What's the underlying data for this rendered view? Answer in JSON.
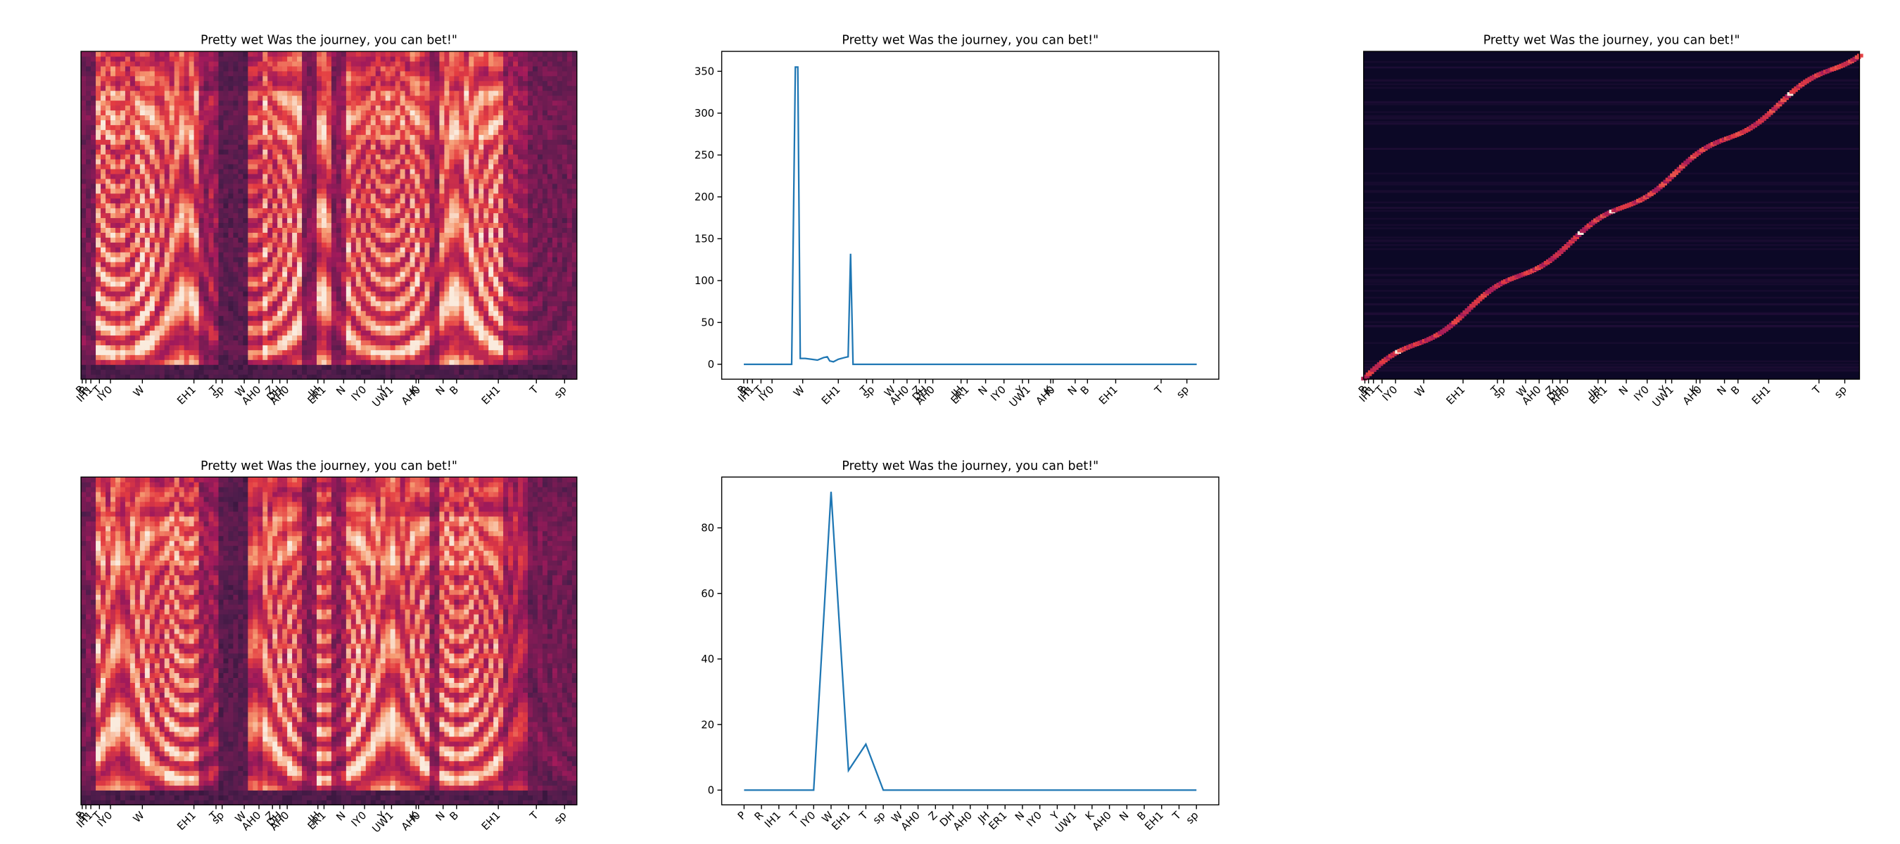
{
  "chart_data": [
    {
      "type": "spectrogram",
      "title": "Pretty wet Was the journey, you can bet!\"",
      "xlim": [
        0,
        404
      ],
      "xticks": [
        {
          "value": 1,
          "label": "P"
        },
        {
          "value": 4,
          "label": "R"
        },
        {
          "value": 8,
          "label": "IH1"
        },
        {
          "value": 15,
          "label": "T"
        },
        {
          "value": 24,
          "label": "IY0"
        },
        {
          "value": 50,
          "label": "W"
        },
        {
          "value": 92,
          "label": "EH1"
        },
        {
          "value": 110,
          "label": "T"
        },
        {
          "value": 115,
          "label": "sp"
        },
        {
          "value": 133,
          "label": "W"
        },
        {
          "value": 145,
          "label": "AH0"
        },
        {
          "value": 156,
          "label": "Z"
        },
        {
          "value": 162,
          "label": "DH"
        },
        {
          "value": 168,
          "label": "AH0"
        },
        {
          "value": 193,
          "label": "JH"
        },
        {
          "value": 198,
          "label": "ER1"
        },
        {
          "value": 214,
          "label": "N"
        },
        {
          "value": 231,
          "label": "IY0"
        },
        {
          "value": 247,
          "label": "Y"
        },
        {
          "value": 253,
          "label": "UW1"
        },
        {
          "value": 273,
          "label": "K"
        },
        {
          "value": 275,
          "label": "AH0"
        },
        {
          "value": 295,
          "label": "N"
        },
        {
          "value": 306,
          "label": "B"
        },
        {
          "value": 340,
          "label": "EH1"
        },
        {
          "value": 371,
          "label": "T"
        },
        {
          "value": 394,
          "label": "sp"
        }
      ]
    },
    {
      "type": "line",
      "title": "Pretty wet Was the journey, you can bet!\"",
      "color": "#1f77b4",
      "x": [
        0,
        39,
        42,
        44,
        46,
        50,
        55,
        60,
        65,
        68,
        70,
        73,
        77,
        82,
        85,
        87,
        89,
        369
      ],
      "values": [
        0,
        0,
        355,
        355,
        7,
        7,
        6,
        5,
        8,
        9,
        4,
        3,
        6,
        8,
        9,
        132,
        0,
        0
      ],
      "xlim": [
        -18,
        387
      ],
      "ylim": [
        -17.8,
        373.8
      ],
      "yticks": [
        0,
        50,
        100,
        150,
        200,
        250,
        300,
        350
      ],
      "xticks": [
        {
          "value": 0,
          "label": "P"
        },
        {
          "value": 3,
          "label": "R"
        },
        {
          "value": 7,
          "label": "IH1"
        },
        {
          "value": 14,
          "label": "T"
        },
        {
          "value": 23,
          "label": "IY0"
        },
        {
          "value": 48,
          "label": "W"
        },
        {
          "value": 77,
          "label": "EH1"
        },
        {
          "value": 100,
          "label": "T"
        },
        {
          "value": 105,
          "label": "sp"
        },
        {
          "value": 122,
          "label": "W"
        },
        {
          "value": 133,
          "label": "AH0"
        },
        {
          "value": 143,
          "label": "Z"
        },
        {
          "value": 148,
          "label": "DH"
        },
        {
          "value": 154,
          "label": "AH0"
        },
        {
          "value": 177,
          "label": "JH"
        },
        {
          "value": 182,
          "label": "ER1"
        },
        {
          "value": 197,
          "label": "N"
        },
        {
          "value": 212,
          "label": "IY0"
        },
        {
          "value": 227,
          "label": "Y"
        },
        {
          "value": 232,
          "label": "UW1"
        },
        {
          "value": 250,
          "label": "K"
        },
        {
          "value": 252,
          "label": "AH0"
        },
        {
          "value": 270,
          "label": "N"
        },
        {
          "value": 280,
          "label": "B"
        },
        {
          "value": 303,
          "label": "EH1"
        },
        {
          "value": 340,
          "label": "T"
        },
        {
          "value": 361,
          "label": "sp"
        }
      ]
    },
    {
      "type": "alignment",
      "title": "Pretty wet Was the journey, you can bet!\"",
      "xlim": [
        0,
        404
      ],
      "xticks": [
        {
          "value": 1,
          "label": "P"
        },
        {
          "value": 4,
          "label": "R"
        },
        {
          "value": 8,
          "label": "IH1"
        },
        {
          "value": 15,
          "label": "T"
        },
        {
          "value": 26,
          "label": "IY0"
        },
        {
          "value": 49,
          "label": "W"
        },
        {
          "value": 81,
          "label": "EH1"
        },
        {
          "value": 109,
          "label": "T"
        },
        {
          "value": 114,
          "label": "sp"
        },
        {
          "value": 132,
          "label": "W"
        },
        {
          "value": 143,
          "label": "AH0"
        },
        {
          "value": 154,
          "label": "Z"
        },
        {
          "value": 160,
          "label": "DH"
        },
        {
          "value": 166,
          "label": "AH0"
        },
        {
          "value": 191,
          "label": "JH"
        },
        {
          "value": 197,
          "label": "ER1"
        },
        {
          "value": 214,
          "label": "N"
        },
        {
          "value": 231,
          "label": "IY0"
        },
        {
          "value": 246,
          "label": "Y"
        },
        {
          "value": 251,
          "label": "UW1"
        },
        {
          "value": 271,
          "label": "K"
        },
        {
          "value": 274,
          "label": "AH0"
        },
        {
          "value": 294,
          "label": "N"
        },
        {
          "value": 305,
          "label": "B"
        },
        {
          "value": 330,
          "label": "EH1"
        },
        {
          "value": 371,
          "label": "T"
        },
        {
          "value": 392,
          "label": "sp"
        }
      ]
    },
    {
      "type": "spectrogram",
      "title": "Pretty wet Was the journey, you can bet!\"",
      "xlim": [
        0,
        404
      ],
      "xticks": [
        {
          "value": 1,
          "label": "P"
        },
        {
          "value": 4,
          "label": "R"
        },
        {
          "value": 8,
          "label": "IH1"
        },
        {
          "value": 15,
          "label": "T"
        },
        {
          "value": 24,
          "label": "IY0"
        },
        {
          "value": 50,
          "label": "W"
        },
        {
          "value": 92,
          "label": "EH1"
        },
        {
          "value": 110,
          "label": "T"
        },
        {
          "value": 115,
          "label": "sp"
        },
        {
          "value": 133,
          "label": "W"
        },
        {
          "value": 145,
          "label": "AH0"
        },
        {
          "value": 156,
          "label": "Z"
        },
        {
          "value": 162,
          "label": "DH"
        },
        {
          "value": 168,
          "label": "AH0"
        },
        {
          "value": 193,
          "label": "JH"
        },
        {
          "value": 198,
          "label": "ER1"
        },
        {
          "value": 214,
          "label": "N"
        },
        {
          "value": 231,
          "label": "IY0"
        },
        {
          "value": 247,
          "label": "Y"
        },
        {
          "value": 253,
          "label": "UW1"
        },
        {
          "value": 273,
          "label": "K"
        },
        {
          "value": 275,
          "label": "AH0"
        },
        {
          "value": 295,
          "label": "N"
        },
        {
          "value": 306,
          "label": "B"
        },
        {
          "value": 340,
          "label": "EH1"
        },
        {
          "value": 371,
          "label": "T"
        },
        {
          "value": 394,
          "label": "sp"
        }
      ]
    },
    {
      "type": "line",
      "title": "Pretty wet Was the journey, you can bet!\"",
      "color": "#1f77b4",
      "categories": [
        "P",
        "R",
        "IH1",
        "T",
        "IY0",
        "W",
        "EH1",
        "T",
        "sp",
        "W",
        "AH0",
        "Z",
        "DH",
        "AH0",
        "JH",
        "ER1",
        "N",
        "IY0",
        "Y",
        "UW1",
        "K",
        "AH0",
        "N",
        "B",
        "EH1",
        "T",
        "sp"
      ],
      "values": [
        0,
        0,
        0,
        0,
        0,
        91,
        6,
        14,
        0,
        0,
        0,
        0,
        0,
        0,
        0,
        0,
        0,
        0,
        0,
        0,
        0,
        0,
        0,
        0,
        0,
        0,
        0
      ],
      "ylim": [
        -4.5,
        95.5
      ],
      "yticks": [
        0,
        20,
        40,
        60,
        80
      ]
    }
  ]
}
